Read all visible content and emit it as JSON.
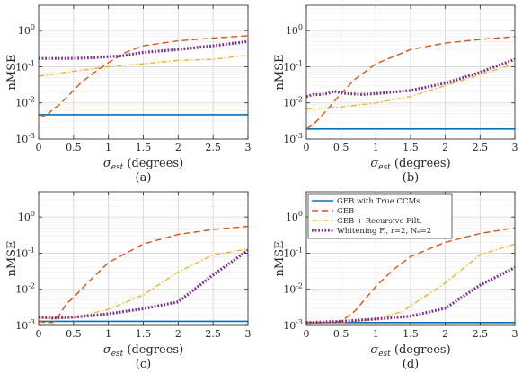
{
  "chart_data": [
    {
      "type": "line",
      "caption": "(a)",
      "xlabel": "σ_est (degrees)",
      "ylabel": "nMSE",
      "yscale": "log",
      "xlim": [
        0,
        3
      ],
      "ylim": [
        0.001,
        5
      ],
      "grid": true,
      "x_ticks": [
        "0",
        "0.5",
        "1",
        "1.5",
        "2",
        "2.5",
        "3"
      ],
      "y_ticks": [
        "10^-3",
        "10^-2",
        "10^-1",
        "10^0"
      ],
      "series": [
        {
          "key": "true_ccm",
          "x": [
            0,
            0.1,
            0.5,
            1,
            1.5,
            2,
            2.5,
            3
          ],
          "values": [
            0.0047,
            0.0047,
            0.0047,
            0.0047,
            0.0047,
            0.0047,
            0.0047,
            0.0047
          ]
        },
        {
          "key": "geb",
          "x": [
            0,
            0.1,
            0.2,
            0.3,
            0.4,
            0.5,
            0.6,
            0.8,
            1,
            1.25,
            1.5,
            2,
            2.5,
            3
          ],
          "values": [
            0.0047,
            0.0042,
            0.0065,
            0.009,
            0.014,
            0.022,
            0.035,
            0.07,
            0.13,
            0.25,
            0.38,
            0.52,
            0.62,
            0.72
          ]
        },
        {
          "key": "geb_recursive",
          "x": [
            0,
            0.5,
            1,
            1.5,
            2,
            2.5,
            3
          ],
          "values": [
            0.055,
            0.075,
            0.1,
            0.12,
            0.15,
            0.16,
            0.21
          ]
        },
        {
          "key": "whitening",
          "x": [
            0,
            0.2,
            0.4,
            0.6,
            0.8,
            1,
            1.2,
            1.5,
            2,
            2.5,
            3
          ],
          "values": [
            0.17,
            0.17,
            0.17,
            0.172,
            0.18,
            0.19,
            0.2,
            0.25,
            0.3,
            0.38,
            0.5
          ]
        }
      ]
    },
    {
      "type": "line",
      "caption": "(b)",
      "xlabel": "σ_est (degrees)",
      "ylabel": "nMSE",
      "yscale": "log",
      "xlim": [
        0,
        3
      ],
      "ylim": [
        0.001,
        5
      ],
      "grid": true,
      "x_ticks": [
        "0",
        "0.5",
        "1",
        "1.5",
        "2",
        "2.5",
        "3"
      ],
      "y_ticks": [
        "10^-3",
        "10^-2",
        "10^-1",
        "10^0"
      ],
      "series": [
        {
          "key": "true_ccm",
          "x": [
            0,
            0.5,
            1,
            1.5,
            2,
            2.5,
            3
          ],
          "values": [
            0.0019,
            0.0019,
            0.0019,
            0.0019,
            0.0019,
            0.0019,
            0.0019
          ]
        },
        {
          "key": "geb",
          "x": [
            0,
            0.1,
            0.2,
            0.3,
            0.4,
            0.5,
            0.7,
            1,
            1.5,
            2,
            2.5,
            3
          ],
          "values": [
            0.0019,
            0.0025,
            0.004,
            0.0065,
            0.011,
            0.018,
            0.045,
            0.12,
            0.3,
            0.45,
            0.57,
            0.68
          ]
        },
        {
          "key": "geb_recursive",
          "x": [
            0,
            0.5,
            1,
            1.5,
            2,
            2.5,
            3
          ],
          "values": [
            0.0068,
            0.0077,
            0.01,
            0.015,
            0.03,
            0.06,
            0.12
          ]
        },
        {
          "key": "whitening",
          "x": [
            0,
            0.1,
            0.2,
            0.3,
            0.4,
            0.5,
            0.6,
            0.8,
            1,
            1.5,
            2,
            2.5,
            3
          ],
          "values": [
            0.015,
            0.017,
            0.017,
            0.018,
            0.021,
            0.019,
            0.018,
            0.017,
            0.018,
            0.022,
            0.035,
            0.07,
            0.16
          ]
        }
      ]
    },
    {
      "type": "line",
      "caption": "(c)",
      "xlabel": "σ_est (degrees)",
      "ylabel": "nMSE",
      "yscale": "log",
      "xlim": [
        0,
        3
      ],
      "ylim": [
        0.001,
        5
      ],
      "grid": true,
      "x_ticks": [
        "0",
        "0.5",
        "1",
        "1.5",
        "2",
        "2.5",
        "3"
      ],
      "y_ticks": [
        "10^-3",
        "10^-2",
        "10^-1",
        "10^0"
      ],
      "series": [
        {
          "key": "true_ccm",
          "x": [
            0,
            0.5,
            1,
            1.5,
            2,
            2.5,
            3
          ],
          "values": [
            0.0013,
            0.0013,
            0.0013,
            0.0013,
            0.0013,
            0.0013,
            0.0013
          ]
        },
        {
          "key": "geb",
          "x": [
            0,
            0.1,
            0.2,
            0.3,
            0.4,
            0.5,
            0.7,
            1,
            1.5,
            2,
            2.5,
            3
          ],
          "values": [
            0.0013,
            0.0012,
            0.0012,
            0.002,
            0.004,
            0.006,
            0.015,
            0.055,
            0.18,
            0.33,
            0.45,
            0.55
          ]
        },
        {
          "key": "geb_recursive",
          "x": [
            0,
            0.5,
            1,
            1.5,
            2,
            2.5,
            3
          ],
          "values": [
            0.0016,
            0.0016,
            0.0028,
            0.007,
            0.03,
            0.09,
            0.13
          ]
        },
        {
          "key": "whitening",
          "x": [
            0,
            0.2,
            0.5,
            0.8,
            1,
            1.5,
            2,
            2.5,
            3
          ],
          "values": [
            0.0017,
            0.0016,
            0.0017,
            0.0019,
            0.0021,
            0.0029,
            0.0045,
            0.025,
            0.12
          ]
        }
      ]
    },
    {
      "type": "line",
      "caption": "(d)",
      "xlabel": "σ_est (degrees)",
      "ylabel": "nMSE",
      "yscale": "log",
      "xlim": [
        0,
        3
      ],
      "ylim": [
        0.001,
        5
      ],
      "grid": true,
      "x_ticks": [
        "0",
        "0.5",
        "1",
        "1.5",
        "2",
        "2.5",
        "3"
      ],
      "y_ticks": [
        "10^-3",
        "10^-2",
        "10^-1",
        "10^0"
      ],
      "legend_position": "upper-left",
      "series": [
        {
          "key": "true_ccm",
          "name": "GEB with True CCMs",
          "x": [
            0,
            0.5,
            1,
            1.5,
            2,
            2.5,
            3
          ],
          "values": [
            0.0012,
            0.0012,
            0.0012,
            0.0012,
            0.0012,
            0.0012,
            0.0012
          ]
        },
        {
          "key": "geb",
          "name": "GEB",
          "x": [
            0,
            0.3,
            0.5,
            0.7,
            1,
            1.25,
            1.5,
            2,
            2.5,
            3
          ],
          "values": [
            0.0012,
            0.0012,
            0.0013,
            0.0025,
            0.012,
            0.035,
            0.08,
            0.2,
            0.35,
            0.5
          ]
        },
        {
          "key": "geb_recursive",
          "name": "GEB + Recursive Filt.",
          "x": [
            0,
            0.5,
            1,
            1.4,
            1.5,
            2,
            2.5,
            3
          ],
          "values": [
            0.0012,
            0.0012,
            0.0015,
            0.0025,
            0.0035,
            0.015,
            0.09,
            0.18
          ]
        },
        {
          "key": "whitening",
          "name": "Whitening F., r=2, Nₑ=2",
          "x": [
            0,
            0.5,
            1,
            1.5,
            2,
            2.5,
            3
          ],
          "values": [
            0.0012,
            0.0013,
            0.0015,
            0.0018,
            0.003,
            0.013,
            0.04
          ]
        }
      ]
    }
  ],
  "styles": {
    "true_ccm": {
      "color": "#0072BD",
      "dash": "",
      "width": 1.6
    },
    "geb": {
      "color": "#D95319",
      "dash": "7,4",
      "width": 1.4
    },
    "geb_recursive": {
      "color": "#EDB120",
      "dash": "6,2.5,1.5,2.5",
      "width": 1.3
    },
    "whitening": {
      "color": "#7E2F8E",
      "dash": "1.8,1.8",
      "width": 3.2
    }
  }
}
